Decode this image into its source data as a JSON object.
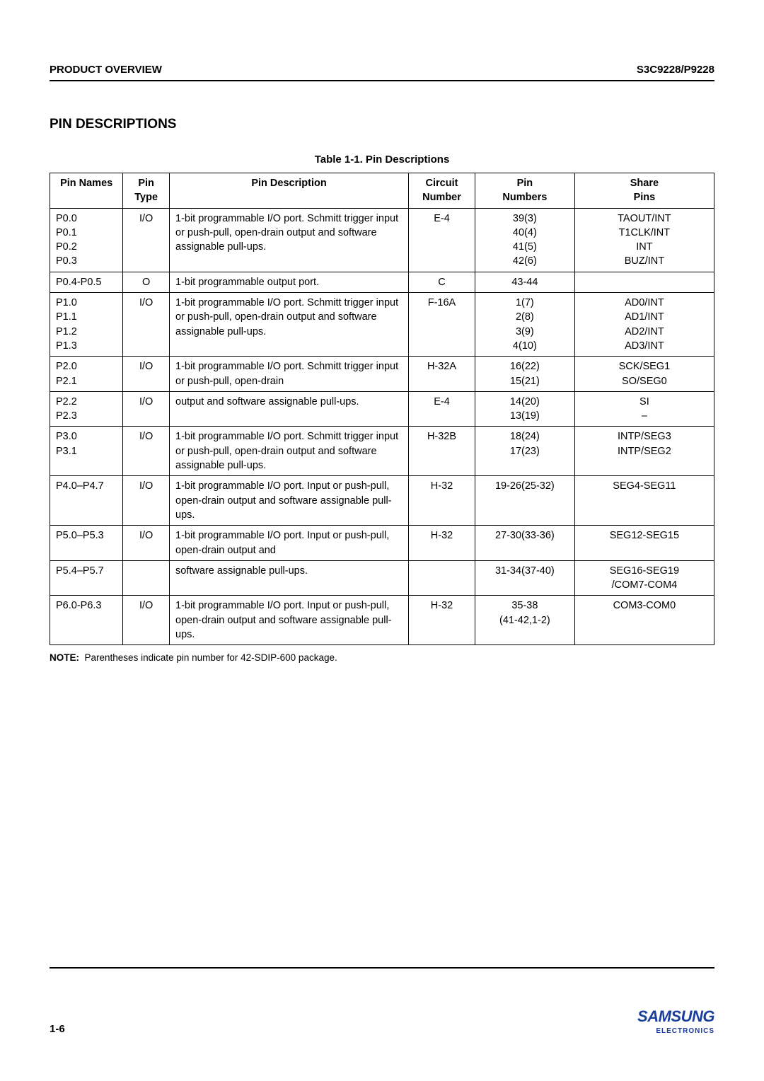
{
  "header": {
    "left": "PRODUCT OVERVIEW",
    "right": "S3C9228/P9228"
  },
  "section_title": "PIN DESCRIPTIONS",
  "table_caption": "Table 1-1. Pin Descriptions",
  "columns": [
    "Pin Names",
    "Pin\nType",
    "Pin Description",
    "Circuit\nNumber",
    "Pin\nNumbers",
    "Share\nPins"
  ],
  "rows": [
    {
      "names": "P0.0\nP0.1\nP0.2\nP0.3",
      "type": "I/O",
      "desc": "1-bit programmable I/O port. Schmitt trigger input or push-pull, open-drain output and software assignable pull-ups.",
      "circuit": "E-4",
      "numbers": "39(3)\n40(4)\n41(5)\n42(6)",
      "share": "TAOUT/INT\nT1CLK/INT\nINT\nBUZ/INT"
    },
    {
      "names": "P0.4-P0.5",
      "type": "O",
      "desc": "1-bit programmable output port.",
      "circuit": "C",
      "numbers": "43-44",
      "share": ""
    },
    {
      "names": "P1.0\nP1.1\nP1.2\nP1.3",
      "type": "I/O",
      "desc": "1-bit programmable I/O port. Schmitt trigger input or push-pull, open-drain output and software assignable pull-ups.",
      "circuit": "F-16A",
      "numbers": "1(7)\n2(8)\n3(9)\n4(10)",
      "share": "AD0/INT\nAD1/INT\nAD2/INT\nAD3/INT"
    },
    {
      "names": "P2.0\nP2.1",
      "type": "I/O",
      "desc": "1-bit programmable I/O port. Schmitt trigger input or push-pull, open-drain",
      "circuit": "H-32A",
      "numbers": "16(22)\n15(21)",
      "share": "SCK/SEG1\nSO/SEG0"
    },
    {
      "names": "P2.2\nP2.3",
      "type": "I/O",
      "desc": "output and software assignable pull-ups.",
      "circuit": "E-4",
      "numbers": "14(20)\n13(19)",
      "share": "SI\n–"
    },
    {
      "names": "P3.0\nP3.1",
      "type": "I/O",
      "desc": "1-bit programmable I/O port. Schmitt trigger input or push-pull, open-drain output and software assignable pull-ups.",
      "circuit": "H-32B",
      "numbers": "18(24)\n17(23)",
      "share": "INTP/SEG3\nINTP/SEG2"
    },
    {
      "names": "P4.0–P4.7",
      "type": "I/O",
      "desc": "1-bit programmable I/O port. Input or push-pull, open-drain output and software assignable pull-ups.",
      "circuit": "H-32",
      "numbers": "19-26(25-32)",
      "share": "SEG4-SEG11"
    },
    {
      "names": "P5.0–P5.3",
      "type": "I/O",
      "desc": "1-bit programmable I/O port. Input or push-pull, open-drain output and",
      "circuit": "H-32",
      "numbers": "27-30(33-36)",
      "share": "SEG12-SEG15"
    },
    {
      "names": "P5.4–P5.7",
      "type": "",
      "desc": "software assignable pull-ups.",
      "circuit": "",
      "numbers": "31-34(37-40)",
      "share": "SEG16-SEG19\n/COM7-COM4"
    },
    {
      "names": "P6.0-P6.3",
      "type": "I/O",
      "desc": "1-bit programmable I/O port. Input or push-pull, open-drain output and software assignable pull-ups.",
      "circuit": "H-32",
      "numbers": "35-38\n(41-42,1-2)",
      "share": "COM3-COM0"
    }
  ],
  "note_label": "NOTE:",
  "note_text": "Parentheses indicate pin number for 42-SDIP-600 package.",
  "footer": {
    "page": "1-6",
    "logo_main": "SAMSUNG",
    "logo_sub": "ELECTRONICS"
  }
}
